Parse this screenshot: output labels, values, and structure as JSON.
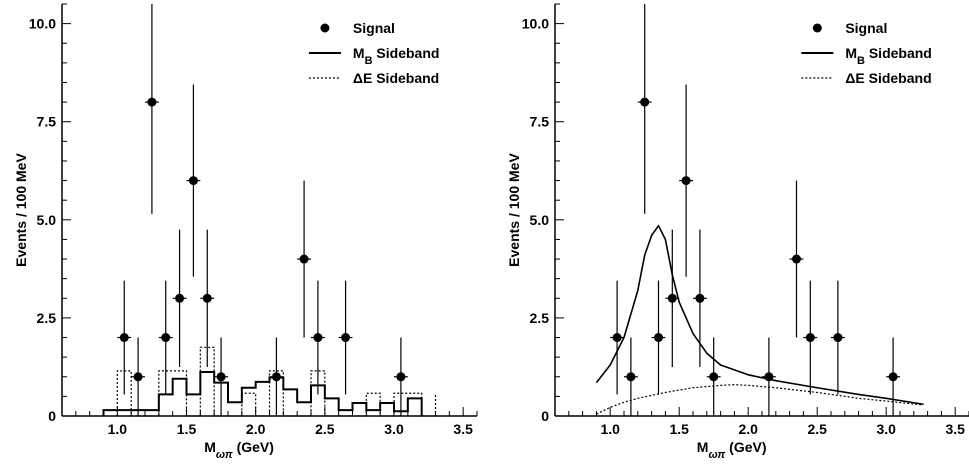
{
  "chart_data": [
    {
      "type": "scatter",
      "panel": "left",
      "xlabel": "M_ωπ (GeV)",
      "ylabel": "Events / 100 MeV",
      "xlim": [
        0.6,
        3.6
      ],
      "ylim": [
        0,
        10.5
      ],
      "xticks": [
        "1.0",
        "1.5",
        "2.0",
        "2.5",
        "3.0",
        "3.5"
      ],
      "yticks": [
        "0",
        "2.5",
        "5.0",
        "7.5",
        "10.0"
      ],
      "legend": {
        "position": "top-right",
        "entries": [
          {
            "label": "Signal",
            "style": "dot"
          },
          {
            "label": "M_B Sideband",
            "style": "solid"
          },
          {
            "label": "ΔE Sideband",
            "style": "dotted"
          }
        ]
      },
      "series": [
        {
          "name": "Signal",
          "kind": "points",
          "points": [
            {
              "x": 1.05,
              "y": 2,
              "err": 1.45
            },
            {
              "x": 1.15,
              "y": 1,
              "err": 1.0
            },
            {
              "x": 1.25,
              "y": 8,
              "err": 2.85
            },
            {
              "x": 1.35,
              "y": 2,
              "err": 1.45
            },
            {
              "x": 1.45,
              "y": 3,
              "err": 1.75
            },
            {
              "x": 1.55,
              "y": 6,
              "err": 2.45
            },
            {
              "x": 1.65,
              "y": 3,
              "err": 1.75
            },
            {
              "x": 1.75,
              "y": 1,
              "err": 1.0
            },
            {
              "x": 2.15,
              "y": 1,
              "err": 1.0
            },
            {
              "x": 2.35,
              "y": 4,
              "err": 2.0
            },
            {
              "x": 2.45,
              "y": 2,
              "err": 1.45
            },
            {
              "x": 2.65,
              "y": 2,
              "err": 1.45
            },
            {
              "x": 3.05,
              "y": 1,
              "err": 1.0
            }
          ]
        },
        {
          "name": "M_B Sideband",
          "kind": "histogram",
          "style": "solid",
          "edges": [
            0.9,
            1.0,
            1.1,
            1.2,
            1.3,
            1.4,
            1.5,
            1.6,
            1.7,
            1.8,
            1.9,
            2.0,
            2.1,
            2.2,
            2.3,
            2.4,
            2.5,
            2.6,
            2.7,
            2.8,
            2.9,
            3.0,
            3.1,
            3.2
          ],
          "values": [
            0.15,
            0.15,
            0.15,
            0.15,
            0.55,
            0.95,
            0.55,
            1.12,
            0.85,
            0.35,
            0.72,
            0.87,
            0.98,
            0.68,
            0.35,
            0.78,
            0.45,
            0.15,
            0.33,
            0.15,
            0.33,
            0.12,
            0.45
          ]
        },
        {
          "name": "ΔE Sideband",
          "kind": "histogram",
          "style": "dotted",
          "edges": [
            1.0,
            1.1,
            1.2,
            1.3,
            1.4,
            1.5,
            1.6,
            1.7,
            1.8,
            1.9,
            2.0,
            2.1,
            2.2,
            2.3,
            2.4,
            2.5,
            2.6,
            2.7,
            2.8,
            2.9,
            3.0,
            3.1,
            3.2,
            3.3
          ],
          "values": [
            1.15,
            0.0,
            0.0,
            1.15,
            1.15,
            0.0,
            1.75,
            0.0,
            0.0,
            0.58,
            0.0,
            1.15,
            0.0,
            0.0,
            1.15,
            0.0,
            0.0,
            0.0,
            0.58,
            0.0,
            0.58,
            0.58,
            0.0,
            0.58
          ]
        }
      ]
    },
    {
      "type": "scatter",
      "panel": "right",
      "xlabel": "M_ωπ (GeV)",
      "ylabel": "Events / 100 MeV",
      "xlim": [
        0.6,
        3.6
      ],
      "ylim": [
        0,
        10.5
      ],
      "xticks": [
        "1.0",
        "1.5",
        "2.0",
        "2.5",
        "3.0",
        "3.5"
      ],
      "yticks": [
        "0",
        "2.5",
        "5.0",
        "7.5",
        "10.0"
      ],
      "legend": {
        "position": "top-right",
        "entries": [
          {
            "label": "Signal",
            "style": "dot"
          },
          {
            "label": "M_B Sideband",
            "style": "solid"
          },
          {
            "label": "ΔE Sideband",
            "style": "dotted"
          }
        ]
      },
      "series": [
        {
          "name": "Signal",
          "kind": "points",
          "points": [
            {
              "x": 1.05,
              "y": 2,
              "err": 1.45
            },
            {
              "x": 1.15,
              "y": 1,
              "err": 1.0
            },
            {
              "x": 1.25,
              "y": 8,
              "err": 2.85
            },
            {
              "x": 1.35,
              "y": 2,
              "err": 1.45
            },
            {
              "x": 1.45,
              "y": 3,
              "err": 1.75
            },
            {
              "x": 1.55,
              "y": 6,
              "err": 2.45
            },
            {
              "x": 1.65,
              "y": 3,
              "err": 1.75
            },
            {
              "x": 1.75,
              "y": 1,
              "err": 1.0
            },
            {
              "x": 2.15,
              "y": 1,
              "err": 1.0
            },
            {
              "x": 2.35,
              "y": 4,
              "err": 2.0
            },
            {
              "x": 2.45,
              "y": 2,
              "err": 1.45
            },
            {
              "x": 2.65,
              "y": 2,
              "err": 1.45
            },
            {
              "x": 3.05,
              "y": 1,
              "err": 1.0
            }
          ]
        },
        {
          "name": "M_B Sideband",
          "kind": "curve",
          "style": "solid",
          "x": [
            0.9,
            1.0,
            1.1,
            1.2,
            1.25,
            1.3,
            1.35,
            1.4,
            1.45,
            1.5,
            1.6,
            1.7,
            1.8,
            2.0,
            2.2,
            2.5,
            2.8,
            3.0,
            3.27
          ],
          "y": [
            0.85,
            1.3,
            2.0,
            3.2,
            4.1,
            4.6,
            4.85,
            4.5,
            3.6,
            2.9,
            2.1,
            1.6,
            1.3,
            1.05,
            0.9,
            0.72,
            0.55,
            0.45,
            0.3
          ]
        },
        {
          "name": "ΔE Sideband",
          "kind": "curve",
          "style": "dotted",
          "x": [
            0.9,
            1.0,
            1.1,
            1.2,
            1.4,
            1.6,
            1.8,
            1.9,
            2.0,
            2.2,
            2.5,
            2.8,
            3.0,
            3.27
          ],
          "y": [
            0.05,
            0.22,
            0.35,
            0.45,
            0.6,
            0.72,
            0.78,
            0.8,
            0.78,
            0.72,
            0.6,
            0.45,
            0.38,
            0.28
          ]
        }
      ]
    }
  ]
}
